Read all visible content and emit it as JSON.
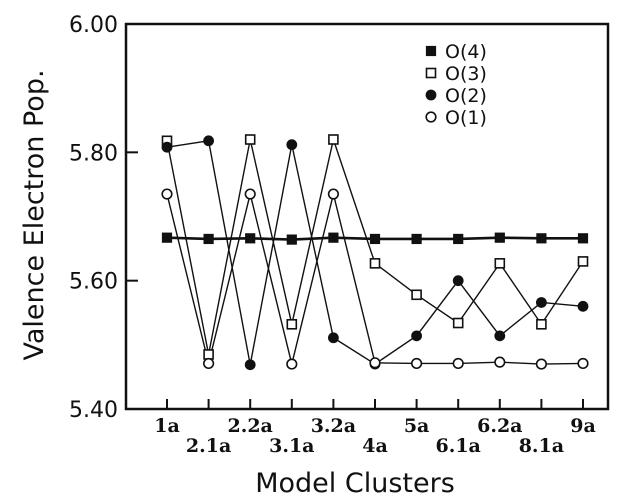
{
  "chart_data": {
    "type": "line",
    "xlabel": "Model Clusters",
    "ylabel": "Valence Electron Pop.",
    "ylim": [
      5.4,
      6.0
    ],
    "yticks": [
      "5.40",
      "5.60",
      "5.80",
      "6.00"
    ],
    "categories": [
      "1a",
      "2.1a",
      "2.2a",
      "3.1a",
      "3.2a",
      "4a",
      "5a",
      "6.1a",
      "6.2a",
      "8.1a",
      "9a"
    ],
    "legend_position": "top-right",
    "grid": false,
    "series": [
      {
        "name": "O(4)",
        "marker": "filled-square",
        "values": [
          5.667,
          5.665,
          5.666,
          5.664,
          5.667,
          5.665,
          5.665,
          5.665,
          5.667,
          5.666,
          5.666
        ]
      },
      {
        "name": "O(3)",
        "marker": "open-square",
        "values": [
          5.818,
          5.485,
          5.82,
          5.532,
          5.82,
          5.627,
          5.578,
          5.534,
          5.627,
          5.532,
          5.63
        ]
      },
      {
        "name": "O(2)",
        "marker": "filled-circle",
        "values": [
          5.808,
          5.818,
          5.469,
          5.812,
          5.511,
          5.47,
          5.514,
          5.6,
          5.514,
          5.566,
          5.56
        ]
      },
      {
        "name": "O(1)",
        "marker": "open-circle",
        "values": [
          5.735,
          5.471,
          5.735,
          5.47,
          5.735,
          5.472,
          5.471,
          5.471,
          5.473,
          5.47,
          5.471
        ]
      }
    ]
  }
}
